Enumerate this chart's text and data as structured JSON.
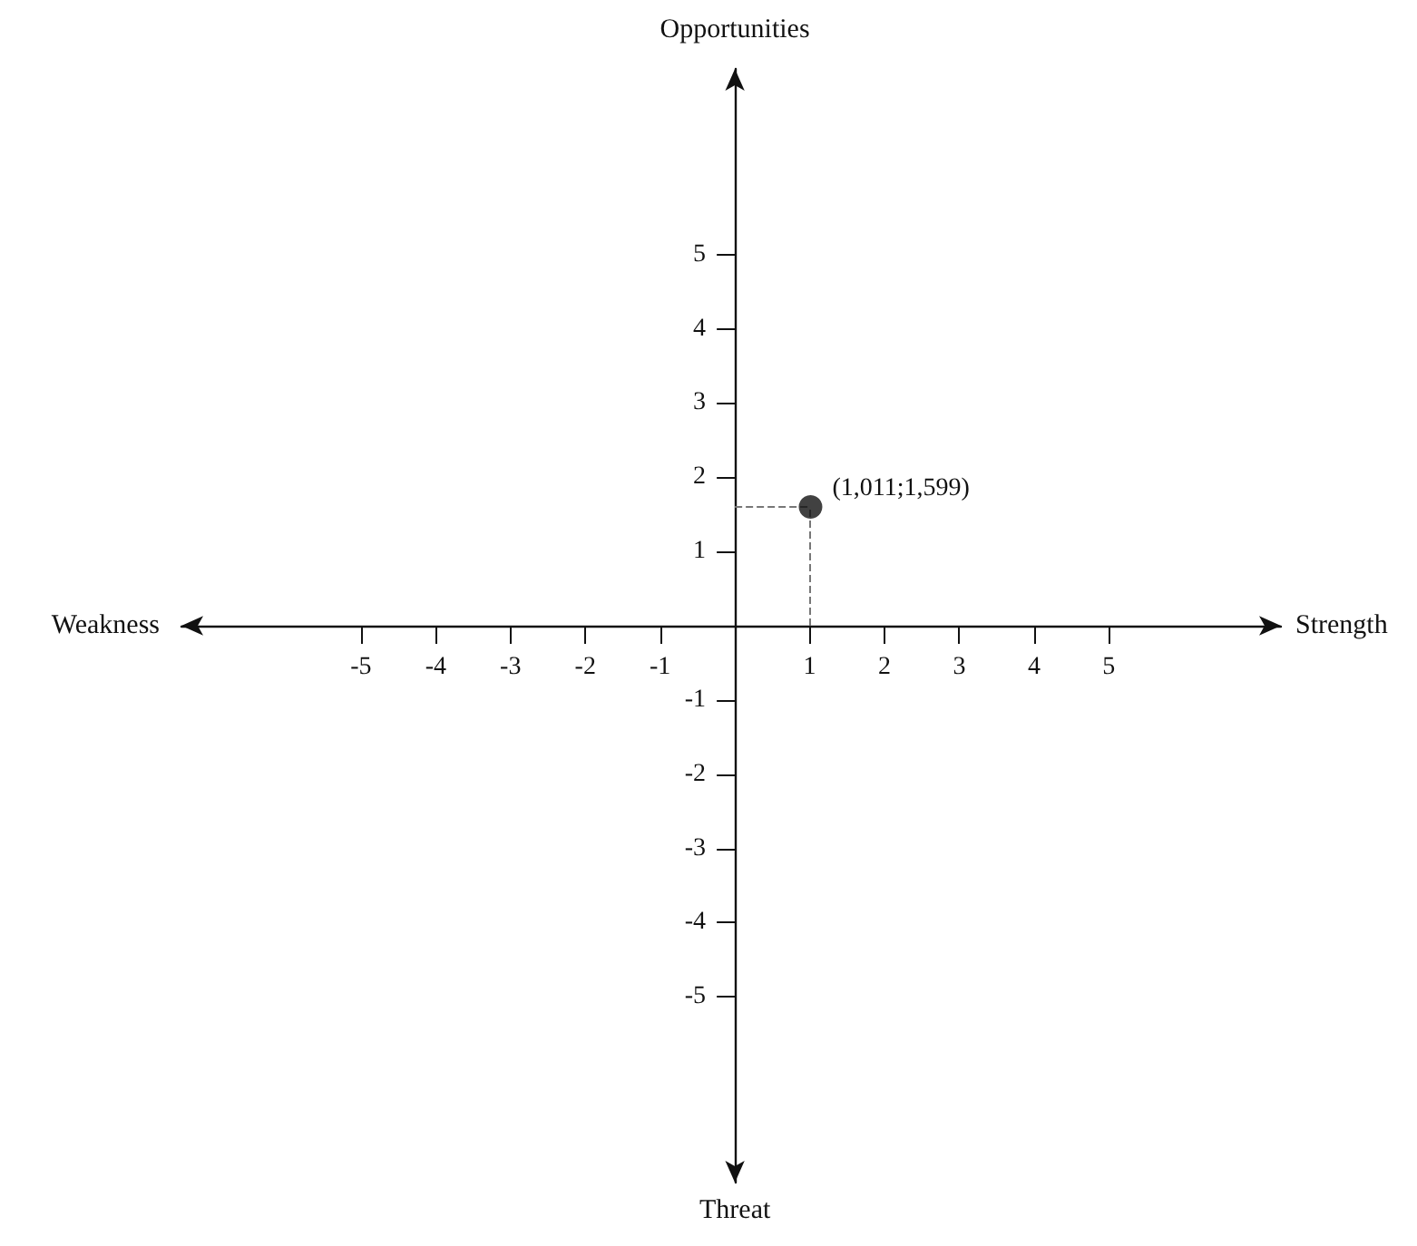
{
  "chart_data": {
    "type": "scatter",
    "xlabel": "Strength",
    "ylabel": "Opportunities",
    "x": [
      1.011
    ],
    "values": [
      1.599
    ],
    "color": "#111111",
    "marker": "circle",
    "grid": false,
    "xlim": [
      -7.4,
      7.3
    ],
    "ylim": [
      -7.5,
      7.5
    ],
    "xticks": [
      -5,
      -4,
      -3,
      -2,
      -1,
      1,
      2,
      3,
      4,
      5
    ],
    "yticks": [
      -5,
      -4,
      -3,
      -2,
      -1,
      1,
      2,
      3,
      4,
      5
    ],
    "annotations": [
      "Weakness",
      "Threat",
      {
        "text": "(1,011;1,599)",
        "x": 1.011,
        "y": 1.599
      }
    ]
  }
}
